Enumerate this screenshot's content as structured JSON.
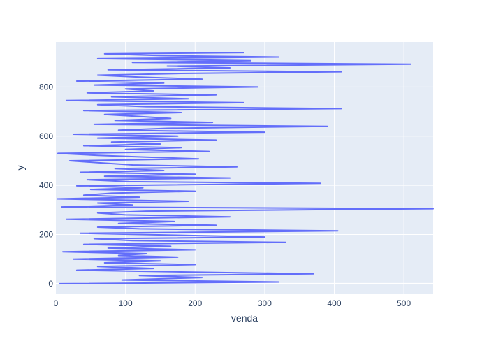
{
  "chart_data": {
    "type": "line",
    "title": "",
    "xlabel": "venda",
    "ylabel": "y",
    "xlim": [
      0,
      542
    ],
    "ylim": [
      -40,
      983
    ],
    "x_ticks": [
      0,
      100,
      200,
      300,
      400,
      500
    ],
    "y_ticks": [
      0,
      200,
      400,
      600,
      800
    ],
    "grid": true,
    "legend": "none",
    "colors": {
      "line": "#636efa",
      "plot_bg": "#e5ecf6",
      "grid": "#ffffff",
      "text": "#2a3f5f"
    },
    "series": [
      {
        "points": [
          [
            5,
            0
          ],
          [
            320,
            7
          ],
          [
            95,
            15
          ],
          [
            210,
            25
          ],
          [
            120,
            33
          ],
          [
            370,
            40
          ],
          [
            180,
            48
          ],
          [
            30,
            55
          ],
          [
            140,
            62
          ],
          [
            60,
            70
          ],
          [
            200,
            78
          ],
          [
            70,
            85
          ],
          [
            150,
            93
          ],
          [
            25,
            100
          ],
          [
            175,
            108
          ],
          [
            90,
            115
          ],
          [
            130,
            122
          ],
          [
            10,
            130
          ],
          [
            200,
            138
          ],
          [
            75,
            145
          ],
          [
            165,
            152
          ],
          [
            40,
            160
          ],
          [
            330,
            168
          ],
          [
            110,
            175
          ],
          [
            55,
            183
          ],
          [
            300,
            190
          ],
          [
            160,
            198
          ],
          [
            35,
            205
          ],
          [
            405,
            215
          ],
          [
            120,
            223
          ],
          [
            60,
            230
          ],
          [
            230,
            238
          ],
          [
            90,
            245
          ],
          [
            170,
            253
          ],
          [
            15,
            262
          ],
          [
            250,
            272
          ],
          [
            100,
            280
          ],
          [
            60,
            288
          ],
          [
            130,
            295
          ],
          [
            542,
            305
          ],
          [
            8,
            312
          ],
          [
            110,
            320
          ],
          [
            60,
            328
          ],
          [
            190,
            335
          ],
          [
            2,
            345
          ],
          [
            120,
            352
          ],
          [
            40,
            360
          ],
          [
            80,
            368
          ],
          [
            200,
            376
          ],
          [
            50,
            383
          ],
          [
            125,
            390
          ],
          [
            30,
            398
          ],
          [
            380,
            408
          ],
          [
            105,
            415
          ],
          [
            45,
            423
          ],
          [
            250,
            430
          ],
          [
            70,
            437
          ],
          [
            200,
            445
          ],
          [
            35,
            453
          ],
          [
            155,
            460
          ],
          [
            85,
            468
          ],
          [
            260,
            475
          ],
          [
            110,
            483
          ],
          [
            60,
            492
          ],
          [
            20,
            500
          ],
          [
            205,
            508
          ],
          [
            130,
            515
          ],
          [
            60,
            522
          ],
          [
            3,
            530
          ],
          [
            220,
            538
          ],
          [
            100,
            546
          ],
          [
            180,
            553
          ],
          [
            40,
            561
          ],
          [
            150,
            568
          ],
          [
            80,
            576
          ],
          [
            230,
            584
          ],
          [
            60,
            592
          ],
          [
            175,
            600
          ],
          [
            25,
            608
          ],
          [
            300,
            616
          ],
          [
            90,
            624
          ],
          [
            160,
            632
          ],
          [
            390,
            640
          ],
          [
            55,
            648
          ],
          [
            225,
            656
          ],
          [
            85,
            664
          ],
          [
            165,
            672
          ],
          [
            120,
            680
          ],
          [
            70,
            688
          ],
          [
            180,
            696
          ],
          [
            40,
            704
          ],
          [
            410,
            712
          ],
          [
            130,
            720
          ],
          [
            60,
            728
          ],
          [
            270,
            736
          ],
          [
            15,
            745
          ],
          [
            190,
            752
          ],
          [
            80,
            760
          ],
          [
            230,
            768
          ],
          [
            45,
            776
          ],
          [
            140,
            784
          ],
          [
            100,
            792
          ],
          [
            290,
            800
          ],
          [
            55,
            808
          ],
          [
            155,
            816
          ],
          [
            30,
            824
          ],
          [
            210,
            832
          ],
          [
            120,
            840
          ],
          [
            60,
            848
          ],
          [
            180,
            855
          ],
          [
            410,
            862
          ],
          [
            75,
            870
          ],
          [
            250,
            878
          ],
          [
            160,
            885
          ],
          [
            510,
            893
          ],
          [
            110,
            900
          ],
          [
            280,
            907
          ],
          [
            60,
            915
          ],
          [
            320,
            922
          ],
          [
            150,
            928
          ],
          [
            70,
            935
          ],
          [
            270,
            940
          ]
        ]
      }
    ]
  }
}
